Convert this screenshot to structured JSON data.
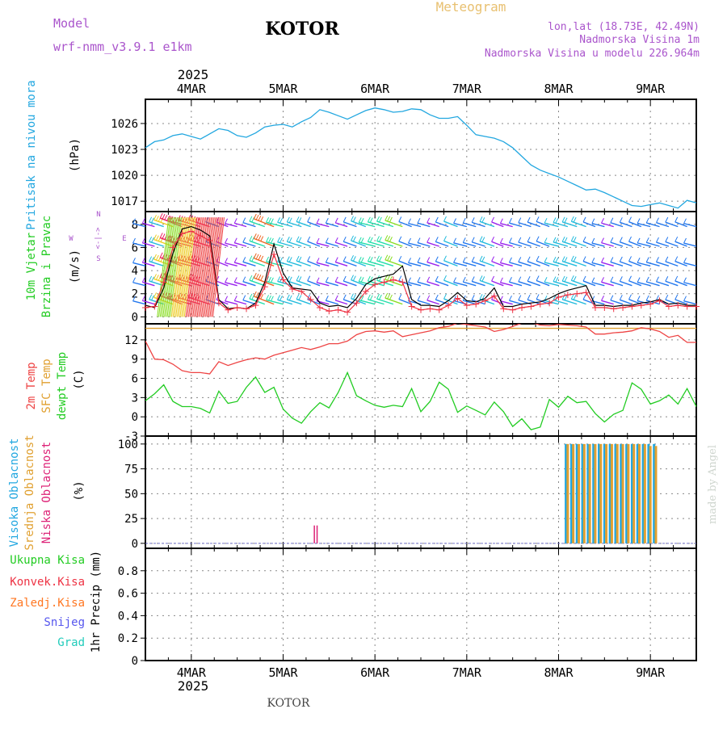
{
  "header": {
    "title": "KOTOR",
    "subtitle": "Meteogram",
    "model_label": "Model",
    "model_name": "wrf-nmm_v3.9.1 e1km",
    "location": "lon,lat (18.73E, 42.49N)",
    "elevation": "Nadmorska Visina 1m",
    "model_elevation": "Nadmorska Visina u modelu 226.964m",
    "footer_title": "KOTOR",
    "credit": "made by Angel"
  },
  "colors": {
    "pressure": "#22a7e0",
    "wind_speed": "#000000",
    "gust": "#ee3344",
    "temp_2m": "#ee4444",
    "temp_sfc": "#e0a030",
    "dewpoint": "#22cc22",
    "cloud_high": "#22a7e0",
    "cloud_mid": "#e0a030",
    "cloud_low": "#dd2277",
    "title": "#000000",
    "meta": "#aa55cc",
    "subtitle": "#e8c070"
  },
  "time_axis": {
    "year": "2025",
    "day_labels": [
      "4MAR",
      "5MAR",
      "6MAR",
      "7MAR",
      "8MAR",
      "9MAR"
    ],
    "day_positions": [
      4,
      5,
      6,
      7,
      8,
      9
    ],
    "start": 3.5,
    "end": 9.5
  },
  "panel_labels": {
    "pressure": [
      "Pritisak na nivou mora",
      "(hPa)"
    ],
    "wind": [
      "10m Vjetar",
      "Brzina i Pravac",
      "(m/s)"
    ],
    "compass": [
      "N",
      "<-|->",
      "S",
      "W",
      "E"
    ],
    "temperature": [
      "2m Temp",
      "SFC Temp",
      "dewpt Temp",
      "(C)"
    ],
    "clouds": [
      "Visoka Oblacnost",
      "Srednja Oblacnost",
      "Niska Oblacnost",
      "(%)"
    ],
    "precip_legend": [
      "Ukupna Kisa",
      "Konvek.Kisa",
      "Zaledj.Kisa",
      "Snijeg",
      "Grad"
    ],
    "precip_axis": "1hr Precip (mm)"
  },
  "legend_colors": {
    "precip": [
      "#22cc22",
      "#ee3344",
      "#ff7722",
      "#5555ee",
      "#22ccbb"
    ]
  },
  "chart_data": [
    {
      "type": "line",
      "name": "pressure",
      "ylim": [
        1015.8,
        1028.8
      ],
      "yticks": [
        1017,
        1020,
        1023,
        1026
      ],
      "x": [
        3.5,
        3.6,
        3.7,
        3.8,
        3.9,
        4.0,
        4.1,
        4.2,
        4.3,
        4.4,
        4.5,
        4.6,
        4.7,
        4.8,
        4.9,
        5.0,
        5.1,
        5.2,
        5.3,
        5.4,
        5.5,
        5.6,
        5.7,
        5.8,
        5.9,
        6.0,
        6.1,
        6.2,
        6.3,
        6.4,
        6.5,
        6.6,
        6.7,
        6.8,
        6.9,
        7.0,
        7.1,
        7.2,
        7.3,
        7.4,
        7.5,
        7.6,
        7.7,
        7.8,
        7.9,
        8.0,
        8.1,
        8.2,
        8.3,
        8.4,
        8.5,
        8.6,
        8.7,
        8.8,
        8.9,
        9.0,
        9.1,
        9.2,
        9.3,
        9.4,
        9.5
      ],
      "y": [
        1023.2,
        1023.9,
        1024.1,
        1024.6,
        1024.8,
        1024.5,
        1024.2,
        1024.8,
        1025.4,
        1025.2,
        1024.6,
        1024.4,
        1024.9,
        1025.6,
        1025.8,
        1025.9,
        1025.6,
        1026.2,
        1026.7,
        1027.6,
        1027.3,
        1026.9,
        1026.5,
        1027.0,
        1027.5,
        1027.8,
        1027.6,
        1027.3,
        1027.4,
        1027.7,
        1027.6,
        1027.0,
        1026.6,
        1026.6,
        1026.8,
        1025.8,
        1024.7,
        1024.5,
        1024.3,
        1023.9,
        1023.2,
        1022.2,
        1021.2,
        1020.6,
        1020.2,
        1019.8,
        1019.3,
        1018.8,
        1018.3,
        1018.4,
        1018.0,
        1017.5,
        1017.0,
        1016.5,
        1016.4,
        1016.6,
        1016.8,
        1016.5,
        1016.2,
        1017.1,
        1016.8
      ]
    },
    {
      "type": "line",
      "name": "wind",
      "ylim": [
        -0.6,
        9.1
      ],
      "yticks": [
        0,
        2,
        4,
        6,
        8
      ],
      "barb_levels": [
        1.1,
        2.7,
        4.4,
        6.1,
        7.8
      ],
      "x": [
        3.5,
        3.6,
        3.7,
        3.8,
        3.9,
        4.0,
        4.1,
        4.2,
        4.3,
        4.4,
        4.5,
        4.6,
        4.7,
        4.8,
        4.9,
        5.0,
        5.1,
        5.2,
        5.3,
        5.4,
        5.5,
        5.6,
        5.7,
        5.8,
        5.9,
        6.0,
        6.1,
        6.2,
        6.3,
        6.4,
        6.5,
        6.6,
        6.7,
        6.8,
        6.9,
        7.0,
        7.1,
        7.2,
        7.3,
        7.4,
        7.5,
        7.6,
        7.7,
        7.8,
        7.9,
        8.0,
        8.1,
        8.2,
        8.3,
        8.4,
        8.5,
        8.6,
        8.7,
        8.8,
        8.9,
        9.0,
        9.1,
        9.2,
        9.3,
        9.4,
        9.5
      ],
      "speed": [
        1.0,
        0.8,
        2.5,
        5.5,
        7.6,
        7.8,
        7.5,
        7.0,
        1.5,
        0.7,
        0.8,
        0.7,
        1.2,
        3.0,
        6.3,
        3.8,
        2.5,
        2.4,
        2.3,
        1.2,
        0.9,
        1.0,
        0.8,
        1.6,
        2.8,
        3.3,
        3.5,
        3.7,
        4.4,
        1.5,
        1.0,
        1.0,
        0.9,
        1.4,
        2.1,
        1.4,
        1.3,
        1.6,
        2.5,
        0.9,
        0.9,
        1.1,
        1.2,
        1.3,
        1.6,
        2.0,
        2.3,
        2.5,
        2.7,
        1.0,
        1.0,
        0.9,
        1.0,
        1.0,
        1.2,
        1.3,
        1.5,
        1.1,
        1.2,
        1.0,
        1.0
      ],
      "gust": [
        0.8,
        0.9,
        3.0,
        6.0,
        7.2,
        7.4,
        7.0,
        6.6,
        1.2,
        0.6,
        0.8,
        0.7,
        1.0,
        2.6,
        5.4,
        3.2,
        2.4,
        2.2,
        1.5,
        0.8,
        0.5,
        0.6,
        0.4,
        1.2,
        2.2,
        2.8,
        3.0,
        3.2,
        3.0,
        0.9,
        0.6,
        0.7,
        0.6,
        1.0,
        1.6,
        1.0,
        1.1,
        1.4,
        1.8,
        0.7,
        0.6,
        0.8,
        0.9,
        1.1,
        1.2,
        1.7,
        1.9,
        2.0,
        2.1,
        0.8,
        0.8,
        0.7,
        0.8,
        0.9,
        1.0,
        1.1,
        1.4,
        0.9,
        1.0,
        0.9,
        0.9
      ]
    },
    {
      "type": "line",
      "name": "temperature",
      "ylim": [
        -3,
        14.5
      ],
      "yticks": [
        -3,
        0,
        3,
        6,
        9,
        12
      ],
      "sfc_temp": 13.8,
      "x": [
        3.5,
        3.6,
        3.7,
        3.8,
        3.9,
        4.0,
        4.1,
        4.2,
        4.3,
        4.4,
        4.5,
        4.6,
        4.7,
        4.8,
        4.9,
        5.0,
        5.1,
        5.2,
        5.3,
        5.4,
        5.5,
        5.6,
        5.7,
        5.8,
        5.9,
        6.0,
        6.1,
        6.2,
        6.3,
        6.4,
        6.5,
        6.6,
        6.7,
        6.8,
        6.9,
        7.0,
        7.1,
        7.2,
        7.3,
        7.4,
        7.5,
        7.6,
        7.7,
        7.8,
        7.9,
        8.0,
        8.1,
        8.2,
        8.3,
        8.4,
        8.5,
        8.6,
        8.7,
        8.8,
        8.9,
        9.0,
        9.1,
        9.2,
        9.3,
        9.4,
        9.5
      ],
      "temp_2m": [
        11.8,
        9.0,
        8.9,
        8.2,
        7.2,
        6.9,
        6.9,
        6.7,
        8.6,
        8.0,
        8.5,
        8.9,
        9.2,
        9.0,
        9.6,
        10.0,
        10.4,
        10.8,
        10.5,
        10.9,
        11.4,
        11.4,
        11.8,
        12.8,
        13.3,
        13.4,
        13.2,
        13.4,
        12.5,
        12.8,
        13.1,
        13.4,
        13.9,
        14.1,
        14.6,
        14.4,
        14.2,
        14.0,
        13.3,
        13.6,
        14.1,
        14.6,
        14.7,
        14.3,
        14.2,
        14.4,
        14.3,
        14.2,
        14.0,
        12.9,
        12.9,
        13.1,
        13.2,
        13.4,
        13.9,
        13.7,
        13.3,
        12.4,
        12.7,
        11.6,
        11.6
      ],
      "dewpoint": [
        2.5,
        3.6,
        5.0,
        2.4,
        1.6,
        1.6,
        1.3,
        0.6,
        4.0,
        2.1,
        2.4,
        4.6,
        6.2,
        3.8,
        4.6,
        1.2,
        -0.2,
        -1.0,
        0.8,
        2.2,
        1.4,
        3.8,
        6.9,
        3.3,
        2.5,
        1.8,
        1.5,
        1.8,
        1.6,
        4.4,
        0.8,
        2.4,
        5.4,
        4.3,
        0.7,
        1.7,
        1.0,
        0.3,
        2.3,
        0.8,
        -1.5,
        -0.3,
        -2.0,
        -1.6,
        2.7,
        1.5,
        3.2,
        2.2,
        2.4,
        0.5,
        -0.8,
        0.4,
        1.0,
        5.3,
        4.3,
        2.0,
        2.5,
        3.4,
        2.0,
        4.4,
        1.6
      ]
    },
    {
      "type": "bar",
      "name": "clouds",
      "ylim": [
        -5,
        108
      ],
      "yticks": [
        0,
        25,
        50,
        75,
        100
      ],
      "series": [
        {
          "name": "Visoka Oblacnost",
          "x": [
            8.08,
            8.14,
            8.2,
            8.26,
            8.32,
            8.38,
            8.44,
            8.5,
            8.56,
            8.62,
            8.68,
            8.74,
            8.8,
            8.86,
            8.92,
            8.98,
            9.04
          ],
          "values": [
            100,
            100,
            100,
            100,
            100,
            100,
            100,
            100,
            100,
            100,
            100,
            100,
            100,
            100,
            100,
            100,
            100
          ]
        },
        {
          "name": "Srednja Oblacnost",
          "x": [
            8.1,
            8.16,
            8.22,
            8.28,
            8.34,
            8.4,
            8.46,
            8.52,
            8.58,
            8.64,
            8.7,
            8.76,
            8.82,
            8.88,
            8.94,
            9.0,
            9.06
          ],
          "values": [
            100,
            100,
            100,
            100,
            100,
            100,
            100,
            100,
            100,
            100,
            100,
            100,
            100,
            100,
            100,
            98,
            98
          ]
        },
        {
          "name": "Niska Oblacnost",
          "x": [
            5.34,
            5.37
          ],
          "values": [
            18,
            18
          ]
        }
      ]
    },
    {
      "type": "bar",
      "name": "precip",
      "ylim": [
        0,
        1.0
      ],
      "yticks": [
        0,
        0.2,
        0.4,
        0.6,
        0.8
      ],
      "ytick_labels": [
        "0",
        "0.2",
        "0.4",
        "0.6",
        "0.8"
      ],
      "series": []
    }
  ]
}
